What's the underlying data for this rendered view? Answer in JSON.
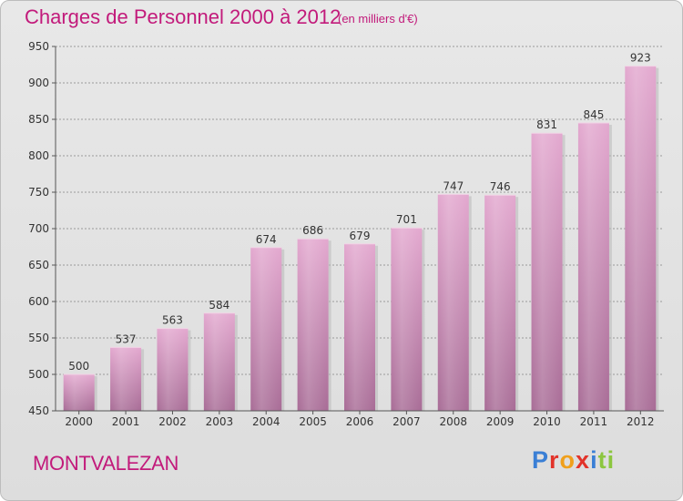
{
  "header": {
    "title": "Charges de Personnel 2000 à 2012",
    "subtitle": "(en milliers d'€)"
  },
  "footer": {
    "place": "MONTVALEZAN",
    "brand": "Proxiti",
    "brand_letters": [
      {
        "ch": "P",
        "color": "#3a7fd5"
      },
      {
        "ch": "r",
        "color": "#e2332a"
      },
      {
        "ch": "o",
        "color": "#f0a01c"
      },
      {
        "ch": "x",
        "color": "#e2332a"
      },
      {
        "ch": "i",
        "color": "#3a7fd5"
      },
      {
        "ch": "t",
        "color": "#8cc63f"
      },
      {
        "ch": "i",
        "color": "#8cc63f"
      }
    ]
  },
  "colors": {
    "accent": "#c21a7b",
    "bar_top": "#e3a8cf",
    "bar_bottom": "#a86c96",
    "grid": "#9a9a9a"
  },
  "chart_data": {
    "type": "bar",
    "title": "Charges de Personnel 2000 à 2012",
    "subtitle": "(en milliers d'€)",
    "categories": [
      "2000",
      "2001",
      "2002",
      "2003",
      "2004",
      "2005",
      "2006",
      "2007",
      "2008",
      "2009",
      "2010",
      "2011",
      "2012"
    ],
    "values": [
      500,
      537,
      563,
      584,
      674,
      686,
      679,
      701,
      747,
      746,
      831,
      845,
      923
    ],
    "value_labels": [
      "500",
      "537",
      "563",
      "584",
      "674",
      "686",
      "679",
      "701",
      "747",
      "746",
      "831",
      "845",
      "923"
    ],
    "ylim": [
      450,
      950
    ],
    "yticks": [
      450,
      500,
      550,
      600,
      650,
      700,
      750,
      800,
      850,
      900,
      950
    ],
    "ytick_labels": [
      "450",
      "500",
      "550",
      "600",
      "650",
      "700",
      "750",
      "800",
      "850",
      "900",
      "950"
    ],
    "grid": true,
    "legend": "none"
  }
}
